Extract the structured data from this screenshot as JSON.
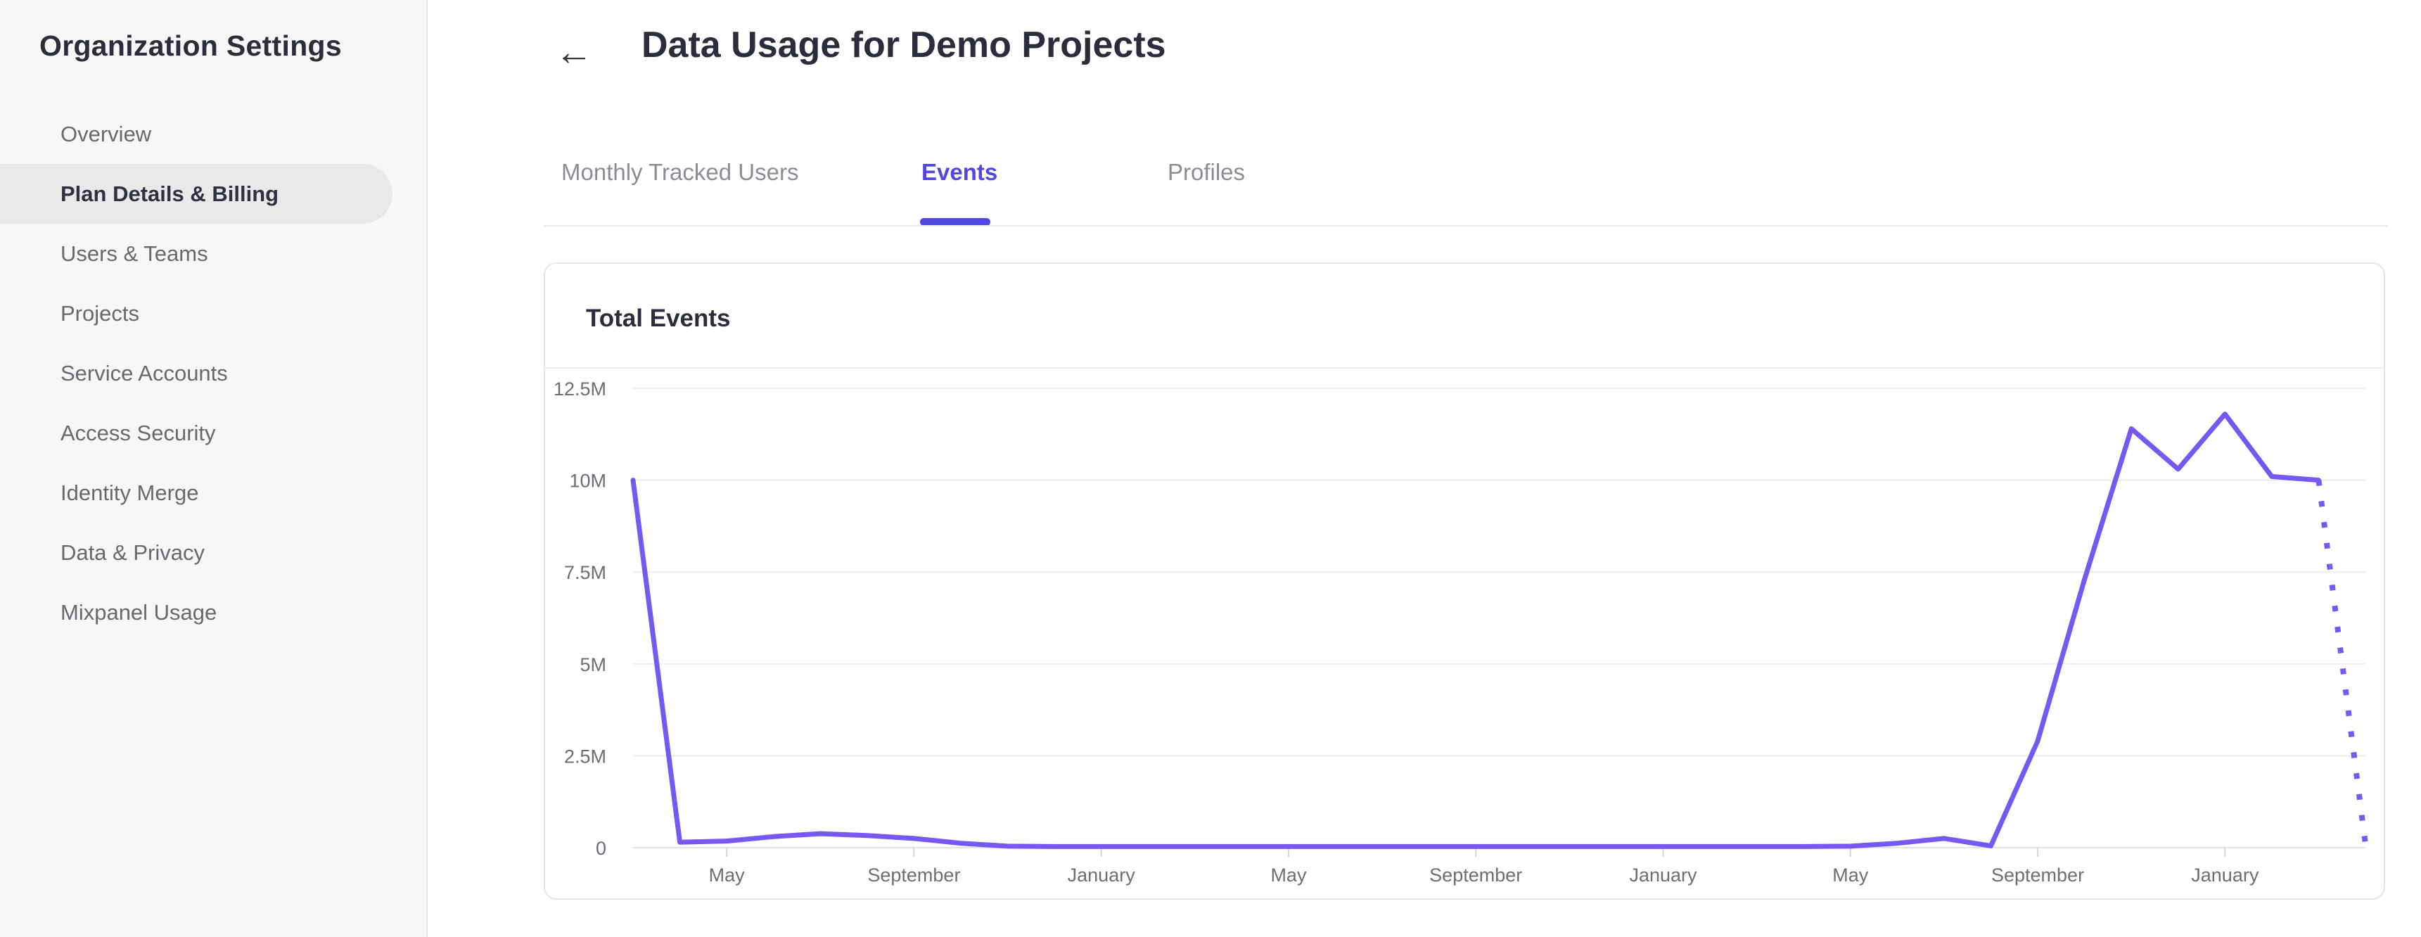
{
  "sidebar": {
    "title": "Organization Settings",
    "items": [
      {
        "label": "Overview",
        "active": false
      },
      {
        "label": "Plan Details & Billing",
        "active": true
      },
      {
        "label": "Users & Teams",
        "active": false
      },
      {
        "label": "Projects",
        "active": false
      },
      {
        "label": "Service Accounts",
        "active": false
      },
      {
        "label": "Access Security",
        "active": false
      },
      {
        "label": "Identity Merge",
        "active": false
      },
      {
        "label": "Data & Privacy",
        "active": false
      },
      {
        "label": "Mixpanel Usage",
        "active": false
      }
    ]
  },
  "header": {
    "back_icon": "←",
    "title": "Data Usage for Demo Projects"
  },
  "tabs": [
    {
      "label": "Monthly Tracked Users",
      "active": false
    },
    {
      "label": "Events",
      "active": true
    },
    {
      "label": "Profiles",
      "active": false
    }
  ],
  "card": {
    "title": "Total Events"
  },
  "colors": {
    "accent": "#5247e5",
    "line": "#7659f2",
    "grid": "#ededed",
    "axis_line": "#e3e3e3",
    "tick": "#d6d6d6",
    "axis_text": "#6d6d76",
    "sidebar_bg": "#f7f7f7",
    "selected_pill": "#e9e9e9"
  },
  "chart_data": {
    "type": "line",
    "title": "Total Events",
    "unit": "events per month (millions)",
    "grid": true,
    "legend_position": "none",
    "ylim": [
      0,
      12.5
    ],
    "y_tick_labels": [
      "12.5M",
      "10M",
      "7.5M",
      "5M",
      "2.5M",
      "0"
    ],
    "y_tick_values": [
      12.5,
      10,
      7.5,
      5,
      2.5,
      0
    ],
    "x_tick_labels": [
      "May",
      "September",
      "January",
      "May",
      "September",
      "January",
      "May",
      "September",
      "January"
    ],
    "x_tick_indices": [
      2,
      6,
      10,
      14,
      18,
      22,
      26,
      30,
      34
    ],
    "total_points": 38,
    "values_millions": [
      10,
      0.15,
      0.18,
      0.3,
      0.38,
      0.33,
      0.25,
      0.12,
      0.04,
      0.03,
      0.03,
      0.03,
      0.03,
      0.03,
      0.03,
      0.03,
      0.03,
      0.03,
      0.03,
      0.03,
      0.03,
      0.03,
      0.03,
      0.03,
      0.03,
      0.03,
      0.04,
      0.12,
      0.25,
      0.05,
      2.9,
      7.3,
      11.4,
      10.3,
      11.8,
      10.1,
      10.0
    ],
    "projected_value_millions": 0.1,
    "projection_style": "dotted"
  }
}
